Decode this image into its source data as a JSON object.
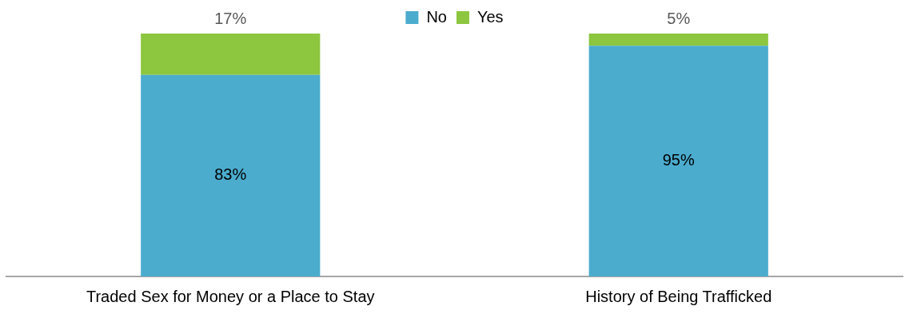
{
  "chart_data": {
    "type": "bar",
    "stacked": true,
    "categories": [
      "Traded Sex for Money or a Place to Stay",
      "History of Being Trafficked"
    ],
    "series": [
      {
        "name": "No",
        "color": "#4bacce",
        "values": [
          83,
          95
        ],
        "value_labels": [
          "83%",
          "95%"
        ]
      },
      {
        "name": "Yes",
        "color": "#8dc63f",
        "values": [
          17,
          5
        ],
        "value_labels": [
          "17%",
          "5%"
        ]
      }
    ],
    "legend": "top",
    "grid": false
  }
}
